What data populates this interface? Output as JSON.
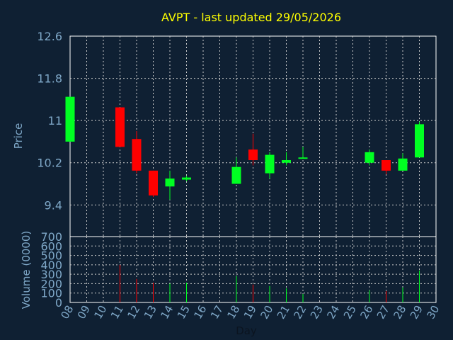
{
  "chart_data": {
    "type": "candlestick",
    "title": "AVPT - last updated 29/05/2026",
    "xlabel": "Day",
    "price": {
      "ylabel": "Price",
      "yticks": [
        "9.4",
        "10.2",
        "11",
        "11.8",
        "12.6"
      ],
      "ylim": [
        8.8,
        12.6
      ]
    },
    "volume": {
      "ylabel": "Volume (0000)",
      "yticks": [
        "0",
        "100",
        "200",
        "300",
        "400",
        "500",
        "600",
        "700"
      ],
      "ylim": [
        0,
        700
      ]
    },
    "x_ticks": [
      "08",
      "09",
      "10",
      "11",
      "12",
      "13",
      "14",
      "15",
      "16",
      "17",
      "18",
      "19",
      "20",
      "21",
      "22",
      "23",
      "24",
      "25",
      "26",
      "27",
      "28",
      "29",
      "30"
    ],
    "grid": true,
    "colors": {
      "background": "#0f2033",
      "axis": "#ffffff",
      "grid": "#cccccc",
      "title": "#ffff00",
      "labels": "#7fa8c8",
      "up": "#00ff22",
      "down": "#ff0000"
    },
    "candles": [
      {
        "day": "08",
        "open": 10.6,
        "high": 11.45,
        "low": 10.6,
        "close": 11.45,
        "volume": 0
      },
      {
        "day": "11",
        "open": 11.25,
        "high": 11.25,
        "low": 10.5,
        "close": 10.5,
        "volume": 400
      },
      {
        "day": "12",
        "open": 10.65,
        "high": 10.8,
        "low": 10.0,
        "close": 10.05,
        "volume": 250
      },
      {
        "day": "13",
        "open": 10.05,
        "high": 10.05,
        "low": 9.55,
        "close": 9.58,
        "volume": 210
      },
      {
        "day": "14",
        "open": 9.75,
        "high": 10.05,
        "low": 9.5,
        "close": 9.9,
        "volume": 200
      },
      {
        "day": "15",
        "open": 9.88,
        "high": 9.95,
        "low": 9.85,
        "close": 9.92,
        "volume": 210
      },
      {
        "day": "18",
        "open": 9.8,
        "high": 10.3,
        "low": 9.8,
        "close": 10.12,
        "volume": 280
      },
      {
        "day": "19",
        "open": 10.45,
        "high": 10.75,
        "low": 10.15,
        "close": 10.25,
        "volume": 190
      },
      {
        "day": "20",
        "open": 10.0,
        "high": 10.4,
        "low": 9.9,
        "close": 10.35,
        "volume": 175
      },
      {
        "day": "21",
        "open": 10.2,
        "high": 10.4,
        "low": 10.15,
        "close": 10.25,
        "volume": 150
      },
      {
        "day": "22",
        "open": 10.28,
        "high": 10.5,
        "low": 10.28,
        "close": 10.3,
        "volume": 90
      },
      {
        "day": "26",
        "open": 10.2,
        "high": 10.45,
        "low": 10.15,
        "close": 10.4,
        "volume": 130
      },
      {
        "day": "27",
        "open": 10.25,
        "high": 10.25,
        "low": 9.98,
        "close": 10.05,
        "volume": 120
      },
      {
        "day": "28",
        "open": 10.05,
        "high": 10.38,
        "low": 10.05,
        "close": 10.28,
        "volume": 160
      },
      {
        "day": "29",
        "open": 10.3,
        "high": 10.98,
        "low": 10.3,
        "close": 10.93,
        "volume": 340
      }
    ]
  }
}
